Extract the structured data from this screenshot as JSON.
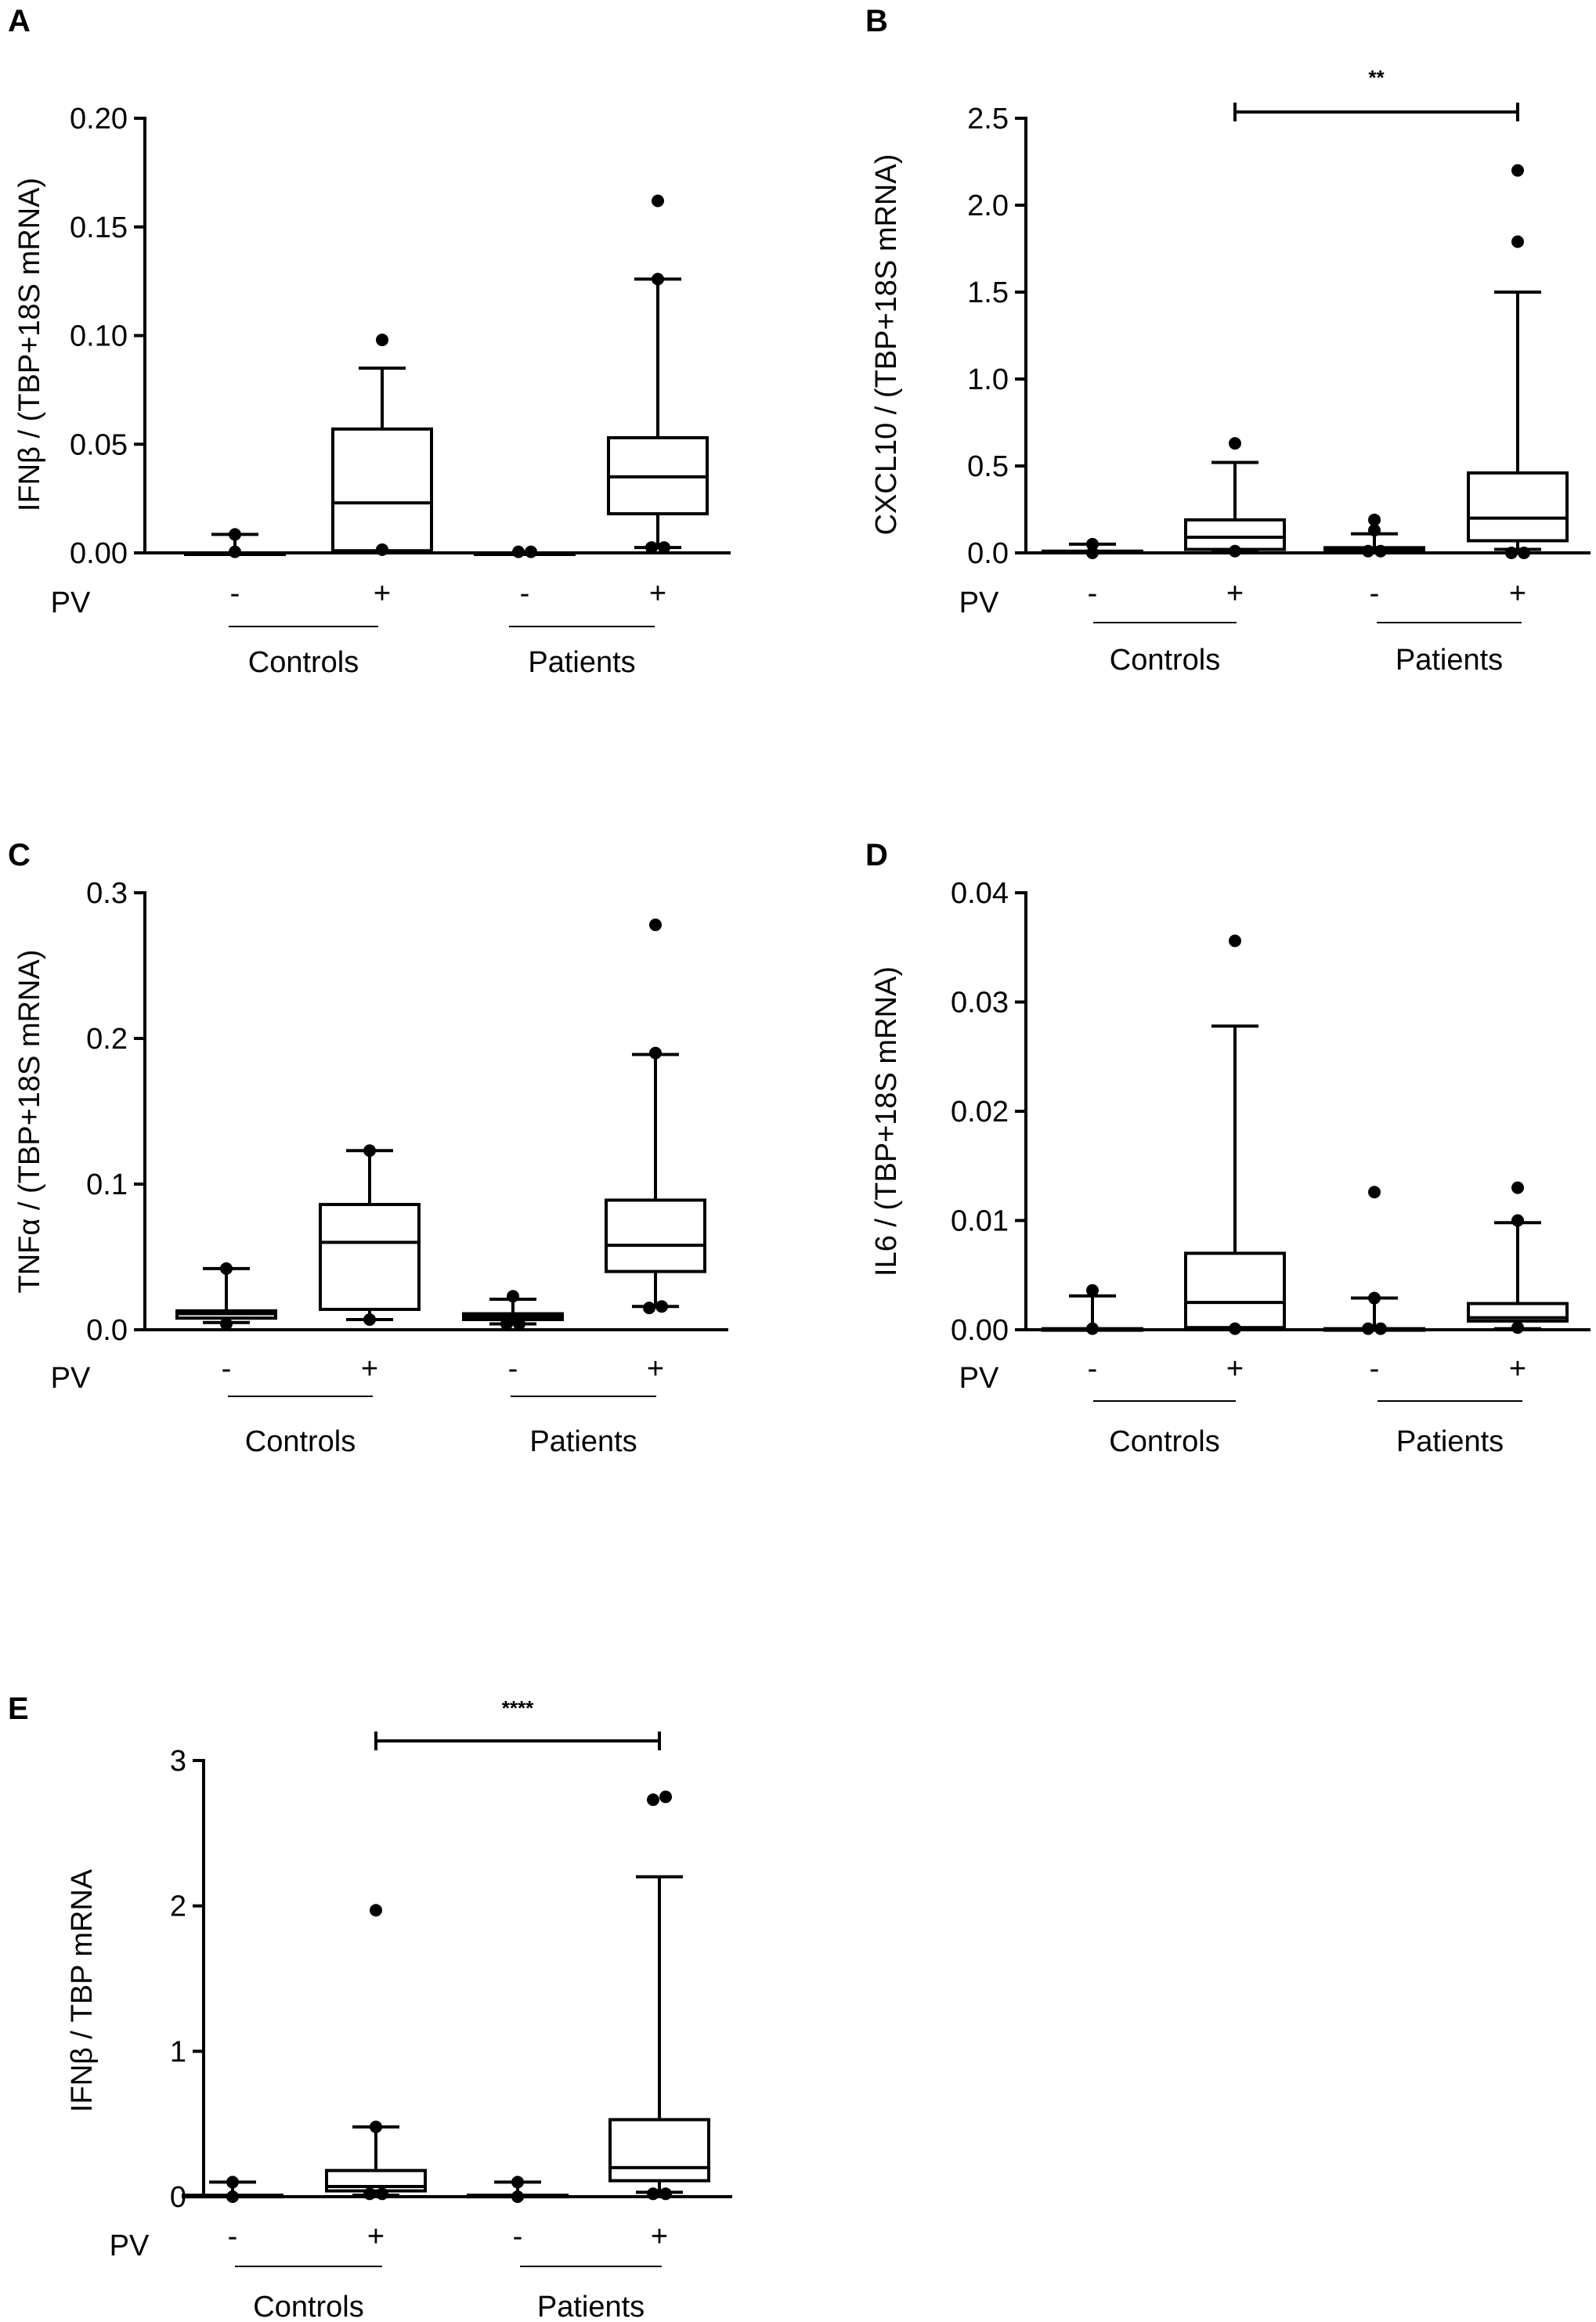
{
  "chart_data": [
    {
      "type": "box",
      "panel": "A",
      "ylabel": "IFNβ / (TBP+18S mRNA)",
      "ylim": [
        0,
        0.2
      ],
      "yticks": [
        "0.00",
        "0.05",
        "0.10",
        "0.15",
        "0.20"
      ],
      "ytick_values": [
        0,
        0.05,
        0.1,
        0.15,
        0.2
      ],
      "row_label": "PV",
      "categories": [
        "-",
        "+",
        "-",
        "+"
      ],
      "groups": [
        {
          "name": "Controls",
          "members": [
            0,
            1
          ]
        },
        {
          "name": "Patients",
          "members": [
            2,
            3
          ]
        }
      ],
      "boxes": [
        {
          "whislo": 0,
          "q1": 0,
          "med": 0,
          "q3": 0,
          "whishi": 0.0085,
          "fliers": [
            0.0085,
            0.0005
          ]
        },
        {
          "whislo": 0.001,
          "q1": 0.001,
          "med": 0.023,
          "q3": 0.057,
          "whishi": 0.085,
          "fliers": [
            0.098,
            0.0015
          ]
        },
        {
          "whislo": 0,
          "q1": 0,
          "med": 0,
          "q3": 0,
          "whishi": 0,
          "fliers": [
            0.0005,
            0.0005
          ]
        },
        {
          "whislo": 0.0025,
          "q1": 0.018,
          "med": 0.035,
          "q3": 0.053,
          "whishi": 0.126,
          "fliers": [
            0.162,
            0.126,
            0.0025,
            0.0025
          ]
        }
      ],
      "significance": null
    },
    {
      "type": "box",
      "panel": "B",
      "ylabel": "CXCL10 / (TBP+18S mRNA)",
      "ylim": [
        0,
        2.5
      ],
      "yticks": [
        "0.0",
        "0.5",
        "1.0",
        "1.5",
        "2.0",
        "2.5"
      ],
      "ytick_values": [
        0,
        0.5,
        1.0,
        1.5,
        2.0,
        2.5
      ],
      "row_label": "PV",
      "categories": [
        "-",
        "+",
        "-",
        "+"
      ],
      "groups": [
        {
          "name": "Controls",
          "members": [
            0,
            1
          ]
        },
        {
          "name": "Patients",
          "members": [
            2,
            3
          ]
        }
      ],
      "boxes": [
        {
          "whislo": 0,
          "q1": 0,
          "med": 0.005,
          "q3": 0.01,
          "whishi": 0.05,
          "fliers": [
            0.05,
            0.0
          ]
        },
        {
          "whislo": 0.01,
          "q1": 0.02,
          "med": 0.09,
          "q3": 0.19,
          "whishi": 0.52,
          "fliers": [
            0.63,
            0.01
          ]
        },
        {
          "whislo": 0,
          "q1": 0.01,
          "med": 0.02,
          "q3": 0.03,
          "whishi": 0.11,
          "fliers": [
            0.19,
            0.13,
            0.01,
            0.01
          ]
        },
        {
          "whislo": 0.02,
          "q1": 0.07,
          "med": 0.2,
          "q3": 0.46,
          "whishi": 1.5,
          "fliers": [
            2.2,
            1.79,
            0.0,
            0.0
          ]
        }
      ],
      "significance": {
        "from": 1,
        "to": 3,
        "label": "**"
      }
    },
    {
      "type": "box",
      "panel": "C",
      "ylabel": "TNFα / (TBP+18S mRNA)",
      "ylim": [
        0,
        0.3
      ],
      "yticks": [
        "0.0",
        "0.1",
        "0.2",
        "0.3"
      ],
      "ytick_values": [
        0,
        0.1,
        0.2,
        0.3
      ],
      "row_label": "PV",
      "categories": [
        "-",
        "+",
        "-",
        "+"
      ],
      "groups": [
        {
          "name": "Controls",
          "members": [
            0,
            1
          ]
        },
        {
          "name": "Patients",
          "members": [
            2,
            3
          ]
        }
      ],
      "boxes": [
        {
          "whislo": 0.005,
          "q1": 0.008,
          "med": 0.011,
          "q3": 0.013,
          "whishi": 0.042,
          "fliers": [
            0.042,
            0.004
          ]
        },
        {
          "whislo": 0.007,
          "q1": 0.014,
          "med": 0.06,
          "q3": 0.086,
          "whishi": 0.123,
          "fliers": [
            0.123,
            0.007
          ]
        },
        {
          "whislo": 0.004,
          "q1": 0.007,
          "med": 0.009,
          "q3": 0.011,
          "whishi": 0.021,
          "fliers": [
            0.023,
            0.004,
            0.004
          ]
        },
        {
          "whislo": 0.016,
          "q1": 0.04,
          "med": 0.058,
          "q3": 0.089,
          "whishi": 0.189,
          "fliers": [
            0.278,
            0.19,
            0.015,
            0.016
          ]
        }
      ],
      "significance": null
    },
    {
      "type": "box",
      "panel": "D",
      "ylabel": "IL6 / (TBP+18S mRNA)",
      "ylim": [
        0,
        0.04
      ],
      "yticks": [
        "0.00",
        "0.01",
        "0.02",
        "0.03",
        "0.04"
      ],
      "ytick_values": [
        0,
        0.01,
        0.02,
        0.03,
        0.04
      ],
      "row_label": "PV",
      "categories": [
        "-",
        "+",
        "-",
        "+"
      ],
      "groups": [
        {
          "name": "Controls",
          "members": [
            0,
            1
          ]
        },
        {
          "name": "Patients",
          "members": [
            2,
            3
          ]
        }
      ],
      "boxes": [
        {
          "whislo": 0,
          "q1": 0,
          "med": 0,
          "q3": 0.0001,
          "whishi": 0.0031,
          "fliers": [
            0.0036,
            0.0001
          ]
        },
        {
          "whislo": 0.0001,
          "q1": 0.0002,
          "med": 0.0025,
          "q3": 0.007,
          "whishi": 0.0278,
          "fliers": [
            0.0356,
            0.0001
          ]
        },
        {
          "whislo": 0,
          "q1": 0,
          "med": 0,
          "q3": 0.0001,
          "whishi": 0.0029,
          "fliers": [
            0.0126,
            0.0029,
            0.0001,
            0.0001
          ]
        },
        {
          "whislo": 0.0001,
          "q1": 0.0008,
          "med": 0.0011,
          "q3": 0.0024,
          "whishi": 0.0098,
          "fliers": [
            0.013,
            0.01,
            0.0002
          ]
        }
      ],
      "significance": null
    },
    {
      "type": "box",
      "panel": "E",
      "ylabel": "IFNβ / TBP mRNA",
      "ylim": [
        0,
        3
      ],
      "yticks": [
        "0",
        "1",
        "2",
        "3"
      ],
      "ytick_values": [
        0,
        1,
        2,
        3
      ],
      "row_label": "PV",
      "categories": [
        "-",
        "+",
        "-",
        "+"
      ],
      "groups": [
        {
          "name": "Controls",
          "members": [
            0,
            1
          ]
        },
        {
          "name": "Patients",
          "members": [
            2,
            3
          ]
        }
      ],
      "boxes": [
        {
          "whislo": 0,
          "q1": 0,
          "med": 0.005,
          "q3": 0.01,
          "whishi": 0.1,
          "fliers": [
            0.1,
            0.0
          ]
        },
        {
          "whislo": 0.01,
          "q1": 0.04,
          "med": 0.07,
          "q3": 0.18,
          "whishi": 0.48,
          "fliers": [
            1.97,
            0.48,
            0.02,
            0.02
          ]
        },
        {
          "whislo": 0,
          "q1": 0,
          "med": 0.005,
          "q3": 0.01,
          "whishi": 0.1,
          "fliers": [
            0.1,
            0.0
          ]
        },
        {
          "whislo": 0.03,
          "q1": 0.11,
          "med": 0.2,
          "q3": 0.53,
          "whishi": 2.2,
          "fliers": [
            2.73,
            2.75,
            0.02,
            0.02
          ]
        }
      ],
      "significance": {
        "from": 1,
        "to": 3,
        "label": "****"
      }
    }
  ]
}
